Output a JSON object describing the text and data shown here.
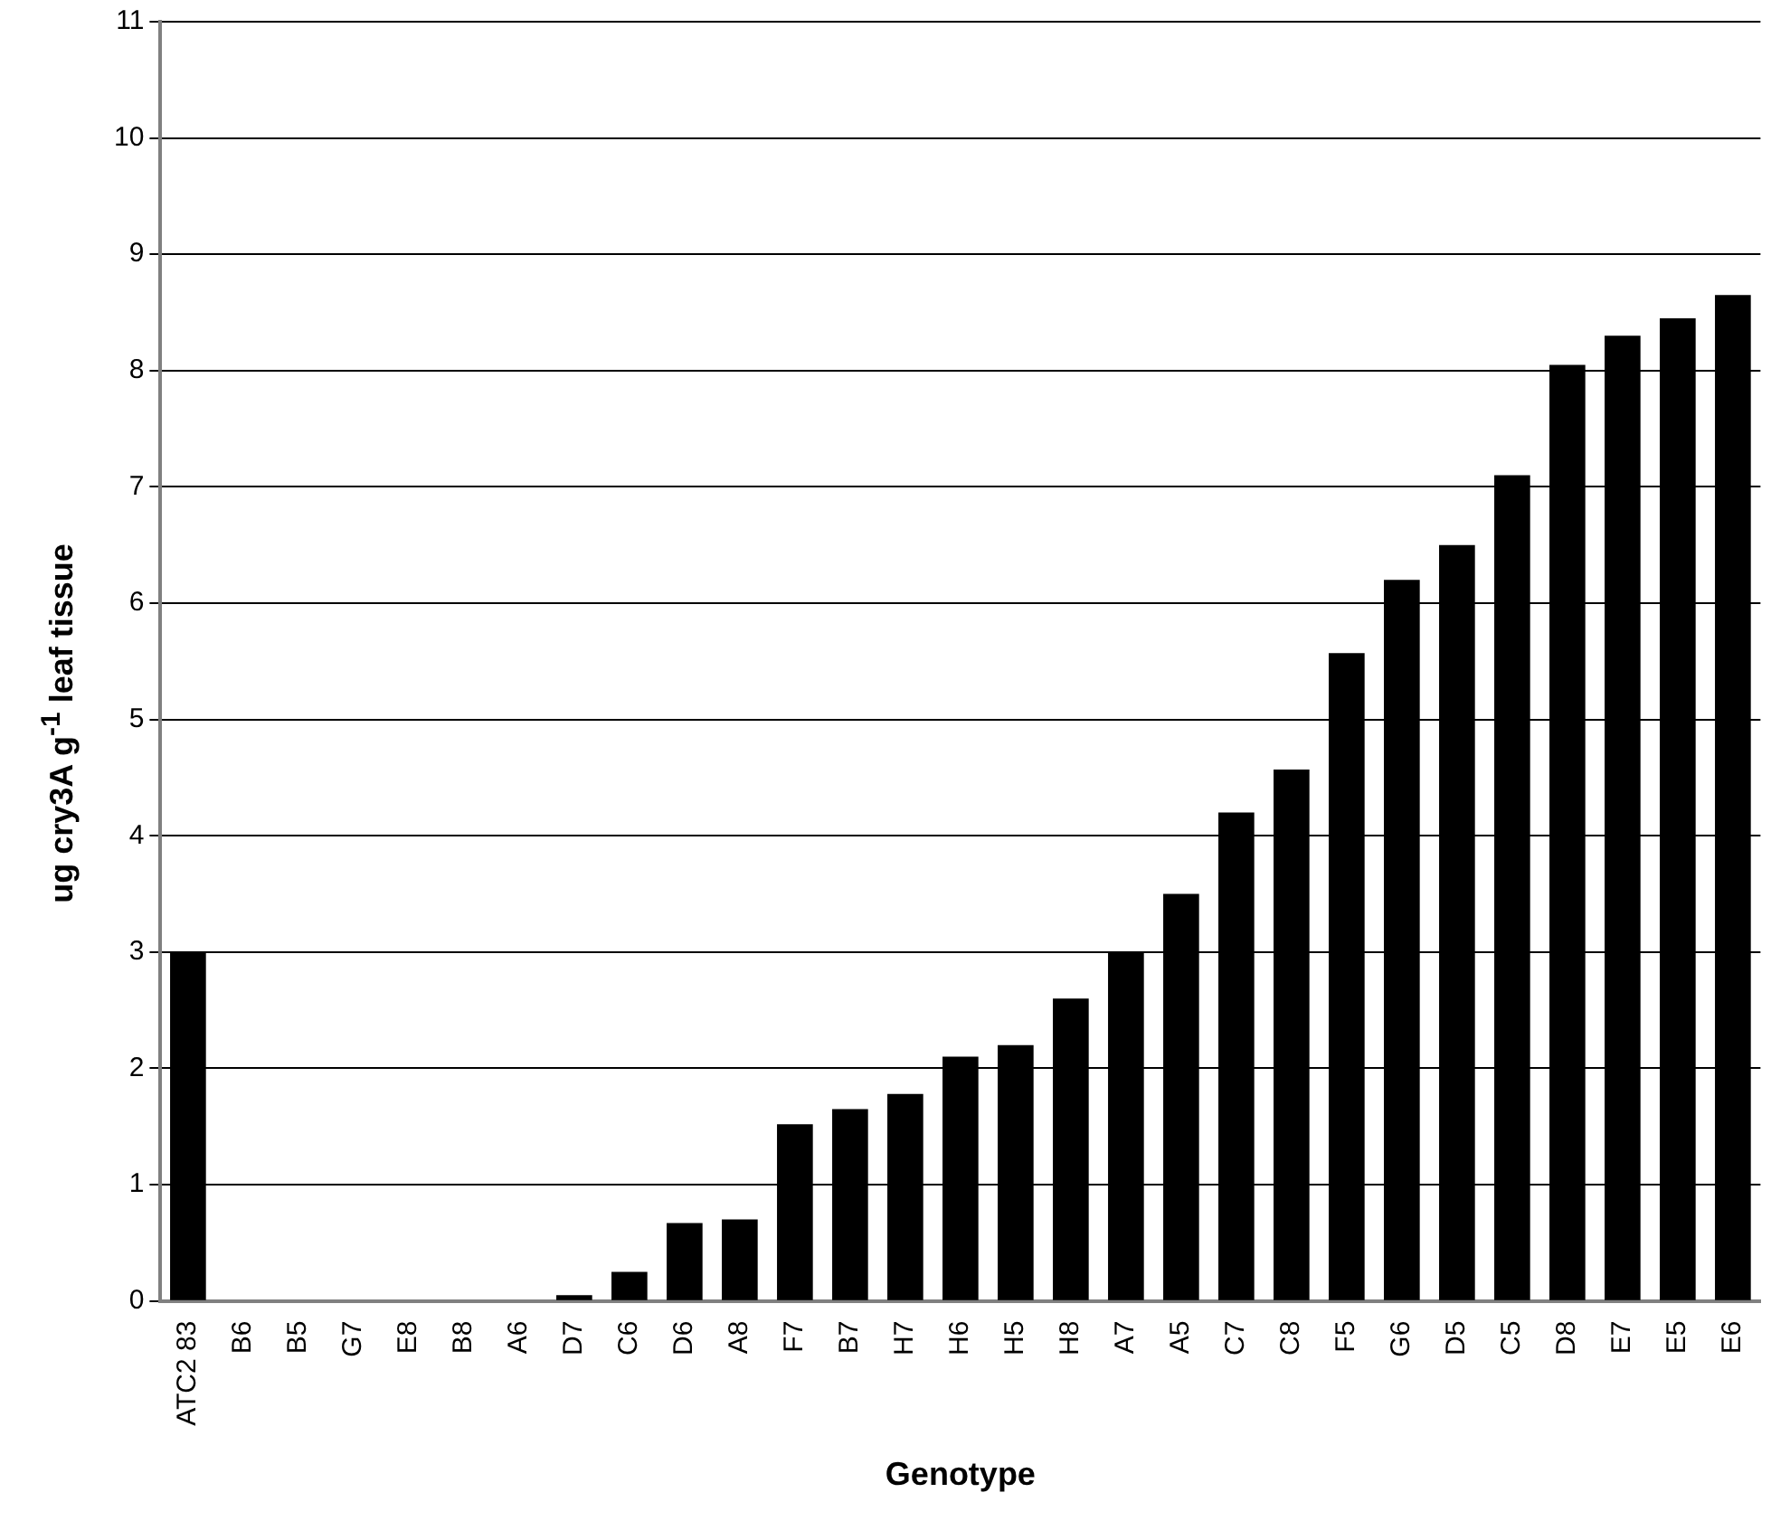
{
  "chart_data": {
    "type": "bar",
    "xlabel": "Genotype",
    "ylabel": "ug cry3A g$^{-1}$ leaf tissue",
    "categories": [
      "ATC2 83",
      "B6",
      "B5",
      "G7",
      "E8",
      "B8",
      "A6",
      "D7",
      "C6",
      "D6",
      "A8",
      "F7",
      "B7",
      "H7",
      "H6",
      "H5",
      "H8",
      "A7",
      "A5",
      "C7",
      "C8",
      "F5",
      "G6",
      "D5",
      "C5",
      "D8",
      "E7",
      "E5",
      "E6"
    ],
    "values": [
      3.0,
      0,
      0,
      0,
      0,
      0,
      0,
      0.05,
      0.25,
      0.67,
      0.7,
      1.52,
      1.65,
      1.78,
      2.1,
      2.2,
      2.6,
      3.0,
      3.5,
      4.2,
      4.57,
      5.57,
      6.2,
      6.5,
      7.1,
      8.05,
      8.3,
      8.45,
      8.65
    ],
    "color": "#000000",
    "ylim": [
      0,
      11
    ],
    "yticks": [
      0,
      1,
      2,
      3,
      4,
      5,
      6,
      7,
      8,
      9,
      10,
      11
    ],
    "grid": "y",
    "legend": false
  }
}
